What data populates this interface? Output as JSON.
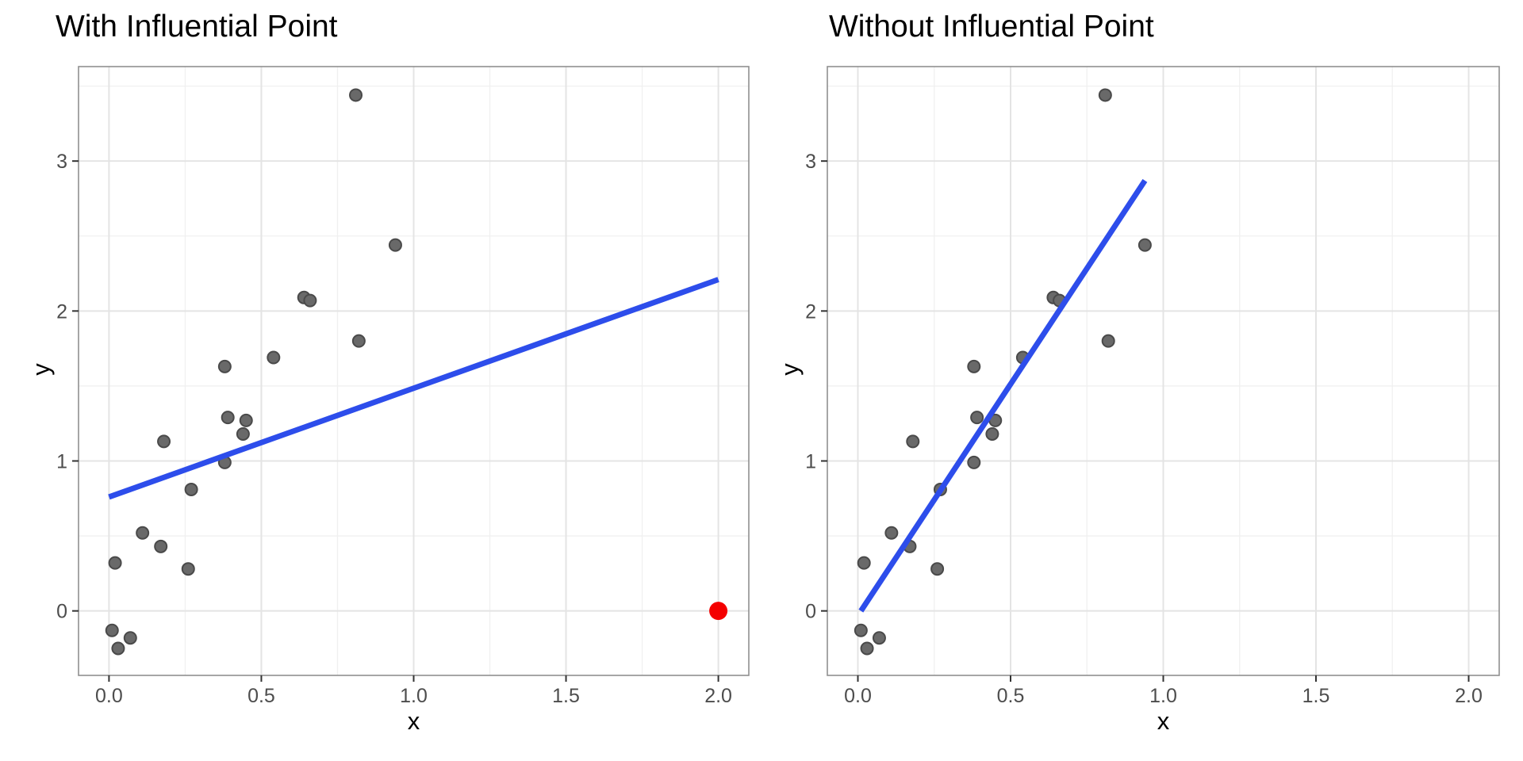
{
  "page": {
    "background": "#ffffff",
    "description": "Two side-by-side ggplot-style scatter plots comparing a linear regression fit with and without an influential point"
  },
  "chart_data": [
    {
      "type": "scatter",
      "title": "With Influential Point",
      "xlabel": "x",
      "ylabel": "y",
      "xlim": [
        -0.1,
        2.1
      ],
      "ylim": [
        -0.43,
        3.63
      ],
      "x_ticks": [
        0.0,
        0.5,
        1.0,
        1.5,
        2.0
      ],
      "x_tick_labels": [
        "0.0",
        "0.5",
        "1.0",
        "1.5",
        "2.0"
      ],
      "x_minor_ticks": [
        0.25,
        0.75,
        1.25,
        1.75
      ],
      "y_ticks": [
        0,
        1,
        2,
        3
      ],
      "y_tick_labels": [
        "0",
        "1",
        "2",
        "3"
      ],
      "y_minor_ticks": [
        0.5,
        1.5,
        2.5,
        3.5
      ],
      "grid": true,
      "legend": "none",
      "points": [
        [
          0.81,
          3.44
        ],
        [
          0.94,
          2.44
        ],
        [
          0.64,
          2.09
        ],
        [
          0.66,
          2.07
        ],
        [
          0.82,
          1.8
        ],
        [
          0.54,
          1.69
        ],
        [
          0.38,
          1.63
        ],
        [
          0.39,
          1.29
        ],
        [
          0.45,
          1.27
        ],
        [
          0.44,
          1.18
        ],
        [
          0.18,
          1.13
        ],
        [
          0.38,
          0.99
        ],
        [
          0.27,
          0.81
        ],
        [
          0.11,
          0.52
        ],
        [
          0.17,
          0.43
        ],
        [
          0.02,
          0.32
        ],
        [
          0.26,
          0.28
        ],
        [
          0.01,
          -0.13
        ],
        [
          0.07,
          -0.18
        ],
        [
          0.03,
          -0.25
        ]
      ],
      "influential_point": [
        2.0,
        0.0
      ],
      "regression_line": {
        "x1": 0.0,
        "y1": 0.76,
        "x2": 2.0,
        "y2": 2.21,
        "slope": 0.73,
        "intercept": 0.76
      }
    },
    {
      "type": "scatter",
      "title": "Without Influential Point",
      "xlabel": "x",
      "ylabel": "y",
      "xlim": [
        -0.1,
        2.1
      ],
      "ylim": [
        -0.43,
        3.63
      ],
      "x_ticks": [
        0.0,
        0.5,
        1.0,
        1.5,
        2.0
      ],
      "x_tick_labels": [
        "0.0",
        "0.5",
        "1.0",
        "1.5",
        "2.0"
      ],
      "x_minor_ticks": [
        0.25,
        0.75,
        1.25,
        1.75
      ],
      "y_ticks": [
        0,
        1,
        2,
        3
      ],
      "y_tick_labels": [
        "0",
        "1",
        "2",
        "3"
      ],
      "y_minor_ticks": [
        0.5,
        1.5,
        2.5,
        3.5
      ],
      "grid": true,
      "legend": "none",
      "points": [
        [
          0.81,
          3.44
        ],
        [
          0.94,
          2.44
        ],
        [
          0.64,
          2.09
        ],
        [
          0.66,
          2.07
        ],
        [
          0.82,
          1.8
        ],
        [
          0.54,
          1.69
        ],
        [
          0.38,
          1.63
        ],
        [
          0.39,
          1.29
        ],
        [
          0.45,
          1.27
        ],
        [
          0.44,
          1.18
        ],
        [
          0.18,
          1.13
        ],
        [
          0.38,
          0.99
        ],
        [
          0.27,
          0.81
        ],
        [
          0.11,
          0.52
        ],
        [
          0.17,
          0.43
        ],
        [
          0.02,
          0.32
        ],
        [
          0.26,
          0.28
        ],
        [
          0.01,
          -0.13
        ],
        [
          0.07,
          -0.18
        ],
        [
          0.03,
          -0.25
        ]
      ],
      "influential_point": null,
      "regression_line": {
        "x1": 0.01,
        "y1": 0.0,
        "x2": 0.94,
        "y2": 2.87,
        "slope": 3.08,
        "intercept": -0.03
      }
    }
  ],
  "colors": {
    "background": "#ffffff",
    "panel_border": "#909090",
    "grid_major": "#e4e4e4",
    "grid_minor": "#f0f0f0",
    "tick_mark": "#333333",
    "tick_label": "#4d4d4d",
    "title_text": "#000000",
    "point_fill": "#696969",
    "point_stroke": "#4a4a4a",
    "regression_blue": "#2d4deb",
    "influential_red": "#f40000"
  }
}
